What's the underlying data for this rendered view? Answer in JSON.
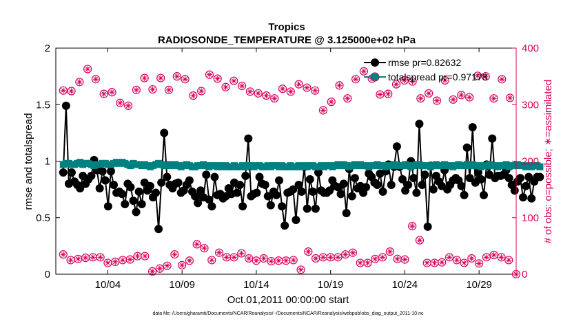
{
  "chart_data": {
    "type": "line",
    "title": "Tropics",
    "subtitle": "RADIOSONDE_TEMPERATURE @ 3.125000e+02 hPa",
    "xlabel": "Oct.01,2011 00:00:00 start",
    "ylabel_left": "rmse and totalspread",
    "ylabel_right": "# of obs: o=possible; ∗=assimilated",
    "x_day_range": [
      0.5,
      31.5
    ],
    "ylim_left": [
      0,
      2
    ],
    "ylim_right": [
      0,
      400
    ],
    "x_ticks": [
      {
        "day": 4,
        "label": "10/04"
      },
      {
        "day": 9,
        "label": "10/09"
      },
      {
        "day": 14,
        "label": "10/14"
      },
      {
        "day": 19,
        "label": "10/19"
      },
      {
        "day": 24,
        "label": "10/24"
      },
      {
        "day": 29,
        "label": "10/29"
      }
    ],
    "y_ticks_left": [
      0,
      0.5,
      1,
      1.5,
      2
    ],
    "y_tick_labels_left": [
      "0",
      "0.5",
      "1",
      "1.5",
      "2"
    ],
    "y_ticks_right": [
      0,
      100,
      200,
      300,
      400
    ],
    "y_tick_labels_right": [
      "0",
      "100",
      "200",
      "300",
      "400"
    ],
    "legend": {
      "placement": "top-right",
      "entries": [
        "rmse pr=0.82632",
        "totalspread pr=0.97178"
      ]
    },
    "colors": {
      "rmse": "#000000",
      "totalspread": "#008080",
      "obs": "#d6005a"
    },
    "series": [
      {
        "name": "rmse",
        "axis": "left",
        "values": [
          0.9,
          1.49,
          0.8,
          0.9,
          0.82,
          0.79,
          0.76,
          0.87,
          0.8,
          0.84,
          0.87,
          1.01,
          0.92,
          0.76,
          0.91,
          0.83,
          0.6,
          0.91,
          0.79,
          0.72,
          0.73,
          0.71,
          0.62,
          0.8,
          0.77,
          0.65,
          0.55,
          0.73,
          0.62,
          0.81,
          0.74,
          0.78,
          0.68,
          0.72,
          0.4,
          0.81,
          1.25,
          0.86,
          0.79,
          0.76,
          0.8,
          0.81,
          0.72,
          0.74,
          0.79,
          0.83,
          0.73,
          0.69,
          0.63,
          0.74,
          0.68,
          0.88,
          0.66,
          0.6,
          0.86,
          0.7,
          0.71,
          0.67,
          0.69,
          0.76,
          0.71,
          0.81,
          0.72,
          0.79,
          0.6,
          0.87,
          1.2,
          0.69,
          0.71,
          0.72,
          0.86,
          0.8,
          0.79,
          0.69,
          0.61,
          0.73,
          0.7,
          0.83,
          0.6,
          0.43,
          0.72,
          0.73,
          0.75,
          0.48,
          0.79,
          0.73,
          0.95,
          0.58,
          0.84,
          0.73,
          0.58,
          0.9,
          0.74,
          0.72,
          0.72,
          0.74,
          0.83,
          0.78,
          0.77,
          0.71,
          0.8,
          0.54,
          0.93,
          0.69,
          0.85,
          0.76,
          0.78,
          0.72,
          0.77,
          0.89,
          0.86,
          0.81,
          0.79,
          0.89,
          0.73,
          0.91,
          0.97,
          0.79,
          0.95,
          1.13,
          0.95,
          0.84,
          0.74,
          0.79,
          1.0,
          0.85,
          0.72,
          1.33,
          0.79,
          0.88,
          0.42,
          0.96,
          0.75,
          0.87,
          0.82,
          0.78,
          0.92,
          0.75,
          0.79,
          0.83,
          0.85,
          0.83,
          0.78,
          0.7,
          1.12,
          0.85,
          1.3,
          0.81,
          0.9,
          0.84,
          0.7,
          0.97,
          0.88,
          1.2,
          0.85,
          0.87,
          0.87,
          0.88,
          0.92,
          0.85,
          0.79,
          0.74,
          0.82,
          0.85,
          0.68,
          0.78,
          0.86,
          0.67,
          0.82,
          0.86,
          0.86
        ],
        "x_start": 1.0,
        "x_step": 0.1888
      },
      {
        "name": "totalspread",
        "axis": "left",
        "values": [
          0.97,
          0.98,
          0.98,
          0.97,
          0.97,
          0.98,
          0.99,
          0.97,
          0.98,
          0.98,
          0.97,
          0.96,
          0.97,
          0.97,
          0.98,
          0.98,
          0.97,
          0.97,
          0.98,
          0.99,
          0.98,
          0.99,
          0.98,
          0.97,
          0.96,
          0.98,
          0.97,
          0.97,
          0.96,
          0.97,
          0.96,
          0.95,
          0.96,
          0.97,
          0.98,
          0.97,
          0.96,
          0.96,
          0.97,
          0.96,
          0.97,
          0.96,
          0.95,
          0.96,
          0.97,
          0.96,
          0.95,
          0.95,
          0.96,
          0.96,
          0.97,
          0.96,
          0.95,
          0.96,
          0.96,
          0.95,
          0.96,
          0.95,
          0.96,
          0.95,
          0.95,
          0.96,
          0.95,
          0.95,
          0.96,
          0.95,
          0.96,
          0.96,
          0.95,
          0.96,
          0.96,
          0.95,
          0.95,
          0.96,
          0.95,
          0.96,
          0.96,
          0.95,
          0.96,
          0.95,
          0.95,
          0.96,
          0.95,
          0.95,
          0.96,
          0.95,
          0.96,
          0.95,
          0.96,
          0.96,
          0.95,
          0.95,
          0.96,
          0.95,
          0.96,
          0.96,
          0.95,
          0.96,
          0.97,
          0.96,
          0.97,
          0.96,
          0.95,
          0.96,
          0.97,
          0.96,
          0.97,
          0.96,
          0.96,
          0.95,
          0.96,
          0.96,
          0.97,
          0.96,
          0.96,
          0.95,
          0.96,
          0.96,
          0.97,
          0.96,
          0.96,
          0.96,
          0.97,
          0.96,
          0.95,
          0.96,
          0.97,
          0.97,
          0.96,
          0.96,
          0.96,
          0.95,
          0.96,
          0.97,
          0.96,
          0.96,
          0.97,
          0.96,
          0.96,
          0.95,
          0.96,
          0.97,
          0.96,
          0.96,
          0.97,
          0.96,
          0.97,
          0.96,
          0.96,
          0.95,
          0.96,
          0.96,
          0.97,
          0.96,
          0.96,
          0.95,
          0.96,
          0.96,
          0.97,
          0.95,
          0.96,
          0.96,
          0.97,
          0.96,
          0.96,
          0.95,
          0.96,
          0.95,
          0.96,
          0.96,
          0.95
        ],
        "x_start": 1.0,
        "x_step": 0.1888
      },
      {
        "name": "obs_possible_high",
        "axis": "right",
        "values": [
          325,
          324,
          340,
          363,
          345,
          319,
          322,
          303,
          298,
          326,
          347,
          327,
          347,
          326,
          350,
          345,
          316,
          324,
          353,
          346,
          331,
          342,
          333,
          323,
          320,
          316,
          311,
          328,
          323,
          336,
          330,
          325,
          290,
          305,
          334,
          311,
          345,
          359,
          346,
          318,
          319,
          336,
          343,
          341,
          311,
          320,
          307,
          343,
          309,
          317,
          313,
          351,
          350,
          311,
          345,
          312
        ],
        "x_start": 1.0,
        "x_step": 0.547
      },
      {
        "name": "obs_possible_low",
        "axis": "right",
        "values": [
          35,
          25,
          27,
          29,
          30,
          30,
          20,
          22,
          25,
          26,
          32,
          32,
          5,
          10,
          15,
          35,
          16,
          24,
          53,
          46,
          25,
          38,
          30,
          30,
          37,
          28,
          24,
          28,
          23,
          24,
          24,
          25,
          8,
          40,
          28,
          30,
          30,
          30,
          35,
          38,
          20,
          20,
          27,
          30,
          40,
          27,
          26,
          85,
          60,
          20,
          20,
          21,
          30,
          25,
          20,
          28,
          19,
          30,
          34,
          30,
          25,
          0
        ],
        "x_start": 1.0,
        "x_step": 0.5
      }
    ]
  },
  "footer": "data file: /Users/gharamti/Documents/NCAR/Reanalysis/~/Documents/NCAR/Reanalysis/webpub/obs_diag_output_2011-10.nc"
}
